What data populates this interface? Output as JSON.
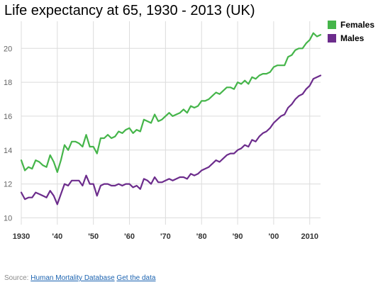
{
  "colors": {
    "females": "#45b54a",
    "males": "#6c2c8c",
    "grid": "#dcdcdc",
    "axis_text": "#666666"
  },
  "source": {
    "prefix": "Source: ",
    "db_link": "Human Mortality Database",
    "data_link": "Get the data"
  },
  "chart_data": {
    "type": "line",
    "title": "Life expectancy at 65, 1930 - 2013 (UK)",
    "xlim": [
      1930,
      2013
    ],
    "ylim": [
      9.6,
      21.6
    ],
    "y_ticks": [
      10,
      12,
      14,
      16,
      18,
      20
    ],
    "x_ticks": [
      1930,
      1940,
      1950,
      1960,
      1970,
      1980,
      1990,
      2000,
      2010
    ],
    "x_tick_labels": [
      "1930",
      "'40",
      "'50",
      "'60",
      "'70",
      "'80",
      "'90",
      "'00",
      "2010"
    ],
    "grid": true,
    "legend": "top-right",
    "x": [
      1930,
      1931,
      1932,
      1933,
      1934,
      1935,
      1936,
      1937,
      1938,
      1939,
      1940,
      1941,
      1942,
      1943,
      1944,
      1945,
      1946,
      1947,
      1948,
      1949,
      1950,
      1951,
      1952,
      1953,
      1954,
      1955,
      1956,
      1957,
      1958,
      1959,
      1960,
      1961,
      1962,
      1963,
      1964,
      1965,
      1966,
      1967,
      1968,
      1969,
      1970,
      1971,
      1972,
      1973,
      1974,
      1975,
      1976,
      1977,
      1978,
      1979,
      1980,
      1981,
      1982,
      1983,
      1984,
      1985,
      1986,
      1987,
      1988,
      1989,
      1990,
      1991,
      1992,
      1993,
      1994,
      1995,
      1996,
      1997,
      1998,
      1999,
      2000,
      2001,
      2002,
      2003,
      2004,
      2005,
      2006,
      2007,
      2008,
      2009,
      2010,
      2011,
      2012,
      2013
    ],
    "series": [
      {
        "name": "Females",
        "values": [
          13.4,
          12.8,
          13.0,
          12.9,
          13.4,
          13.3,
          13.1,
          13.0,
          13.7,
          13.3,
          12.7,
          13.4,
          14.3,
          14.0,
          14.5,
          14.5,
          14.4,
          14.2,
          14.9,
          14.2,
          14.2,
          13.8,
          14.7,
          14.7,
          14.9,
          14.7,
          14.8,
          15.1,
          15.0,
          15.2,
          15.3,
          15.0,
          15.2,
          15.1,
          15.8,
          15.7,
          15.6,
          16.1,
          15.7,
          15.8,
          16.0,
          16.2,
          16.0,
          16.1,
          16.2,
          16.4,
          16.2,
          16.6,
          16.5,
          16.6,
          16.9,
          16.9,
          17.0,
          17.2,
          17.4,
          17.3,
          17.5,
          17.7,
          17.7,
          17.6,
          18.0,
          17.9,
          18.1,
          17.9,
          18.3,
          18.2,
          18.4,
          18.5,
          18.5,
          18.6,
          18.9,
          19.0,
          19.0,
          19.0,
          19.5,
          19.6,
          19.9,
          20.0,
          20.0,
          20.3,
          20.5,
          20.9,
          20.7,
          20.8
        ]
      },
      {
        "name": "Males",
        "values": [
          11.5,
          11.1,
          11.2,
          11.2,
          11.5,
          11.4,
          11.3,
          11.2,
          11.6,
          11.3,
          10.8,
          11.4,
          12.0,
          11.9,
          12.2,
          12.2,
          12.2,
          11.9,
          12.5,
          12.0,
          12.0,
          11.3,
          11.9,
          12.0,
          12.0,
          11.9,
          11.9,
          12.0,
          11.9,
          12.0,
          12.0,
          11.8,
          11.9,
          11.7,
          12.3,
          12.2,
          12.0,
          12.4,
          12.1,
          12.1,
          12.2,
          12.3,
          12.2,
          12.3,
          12.4,
          12.4,
          12.3,
          12.6,
          12.5,
          12.6,
          12.8,
          12.9,
          13.0,
          13.2,
          13.4,
          13.3,
          13.5,
          13.7,
          13.8,
          13.8,
          14.0,
          14.1,
          14.3,
          14.2,
          14.6,
          14.5,
          14.8,
          15.0,
          15.1,
          15.3,
          15.6,
          15.8,
          16.0,
          16.1,
          16.5,
          16.7,
          17.0,
          17.2,
          17.3,
          17.6,
          17.8,
          18.2,
          18.3,
          18.4
        ]
      }
    ]
  }
}
